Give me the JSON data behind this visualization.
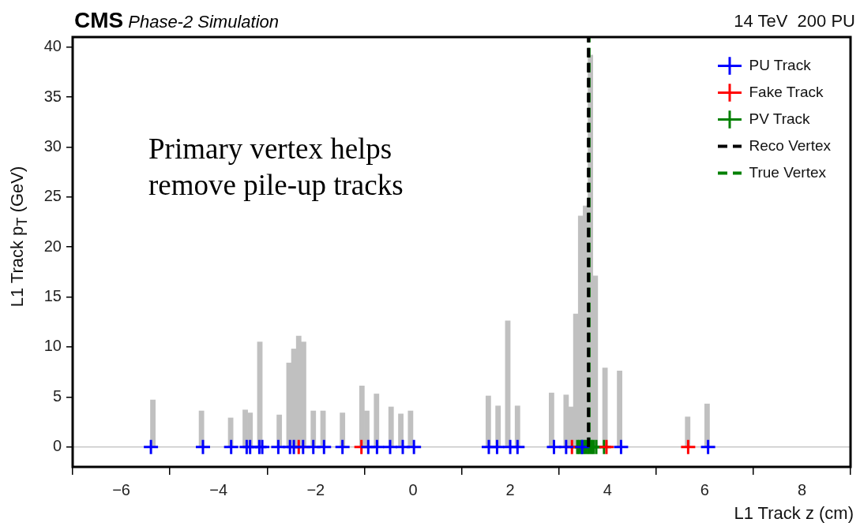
{
  "chart_data": {
    "type": "histogram",
    "title": "CMS",
    "subtitle": "Phase-2 Simulation",
    "xlabel": "L1 Track z (cm)",
    "ylabel": "L1 Track p$_{T}$ (GeV)",
    "annotations": [
      "14 TeV  200 PU",
      "Primary vertex helps remove pile-up tracks"
    ],
    "xlim": [
      -7,
      9
    ],
    "xticks": [
      {
        "value": -6,
        "label": "−6"
      },
      {
        "value": -4,
        "label": "−4"
      },
      {
        "value": -2,
        "label": "−2"
      },
      0,
      2,
      4,
      6,
      8
    ],
    "ylim": [
      -2,
      41
    ],
    "yticks": [
      0,
      5,
      10,
      15,
      20,
      25,
      30,
      35,
      40
    ],
    "legend": "top right",
    "ref_lines": [
      {
        "axis": "y",
        "value": 0,
        "color": "#d0d0d0"
      }
    ],
    "series": [
      {
        "color": "#c0c0c0",
        "bins": [
          -7,
          -5.4,
          -5.3,
          -4.4,
          -4.3,
          -3.8,
          -3.7,
          -3.5,
          -3.4,
          -3.3,
          -3.2,
          -3.1,
          -2.8,
          -2.7,
          -2.6,
          -2.5,
          -2.4,
          -2.3,
          -2.2,
          -2.1,
          -2.0,
          -1.9,
          -1.8,
          -1.5,
          -1.4,
          -1.1,
          -1.0,
          -0.9,
          -0.8,
          -0.7,
          -0.5,
          -0.4,
          -0.3,
          -0.2,
          -0.1,
          0.0,
          1.5,
          1.6,
          1.7,
          1.8,
          1.9,
          2.0,
          2.1,
          2.2,
          2.8,
          2.9,
          3.1,
          3.2,
          3.3,
          3.4,
          3.5,
          3.6,
          3.7,
          3.8,
          3.9,
          4.0,
          4.2,
          4.3,
          5.6,
          5.7,
          6.0,
          6.1,
          9
        ],
        "values": [
          0,
          4.7,
          0,
          3.6,
          0,
          2.9,
          0,
          3.7,
          3.4,
          0,
          10.5,
          0,
          3.2,
          0,
          8.4,
          9.8,
          11.1,
          10.5,
          0,
          3.6,
          0,
          3.6,
          0,
          3.4,
          0,
          6.1,
          3.6,
          0,
          5.3,
          0,
          4.0,
          0,
          3.3,
          0,
          3.6,
          0,
          5.1,
          0,
          4.1,
          0,
          12.6,
          0,
          4.1,
          0,
          5.4,
          0,
          5.2,
          4.0,
          13.3,
          23.1,
          24.1,
          39.2,
          17.1,
          0,
          7.9,
          0,
          7.6,
          0,
          3.0,
          0,
          4.3,
          0
        ]
      },
      {
        "type": "scatter",
        "name": "PU Track",
        "color": "#0000ff",
        "marker": "cross",
        "x": [
          -5.39,
          -4.32,
          -3.74,
          -3.42,
          -3.35,
          -3.16,
          -3.1,
          -2.77,
          -2.53,
          -2.45,
          -2.26,
          -2.05,
          -1.83,
          -1.45,
          -0.92,
          -0.74,
          -0.47,
          -0.21,
          0.02,
          1.56,
          1.73,
          2.0,
          2.15,
          2.9,
          3.15,
          3.48,
          4.28,
          6.07
        ],
        "values": [
          0,
          0,
          0,
          0,
          0,
          0,
          0,
          0,
          0,
          0,
          0,
          0,
          0,
          0,
          0,
          0,
          0,
          0,
          0,
          0,
          0,
          0,
          0,
          0,
          0,
          0,
          0,
          0
        ]
      },
      {
        "type": "scatter",
        "name": "Fake Track",
        "color": "#ff0000",
        "marker": "cross",
        "x": [
          -2.35,
          -1.06,
          3.27,
          3.98,
          5.66
        ],
        "values": [
          0,
          0,
          0,
          0,
          0
        ]
      },
      {
        "type": "scatter",
        "name": "PV Track",
        "color": "#008000",
        "marker": "cross",
        "x": [
          3.38,
          3.42,
          3.47,
          3.52,
          3.56,
          3.6,
          3.64,
          3.68,
          3.72,
          3.77,
          3.93
        ],
        "values": [
          0,
          0,
          0,
          0,
          0,
          0,
          0,
          0,
          0,
          0,
          0
        ]
      },
      {
        "type": "line",
        "name": "Reco Vertex",
        "color": "#000000",
        "line_style": "dashed",
        "x": [
          3.61,
          3.61
        ],
        "values": [
          0,
          41
        ]
      },
      {
        "type": "line",
        "name": "True Vertex",
        "color": "#008000",
        "line_style": "dashed",
        "x": [
          3.62,
          3.62
        ],
        "values": [
          0,
          41
        ]
      }
    ]
  }
}
